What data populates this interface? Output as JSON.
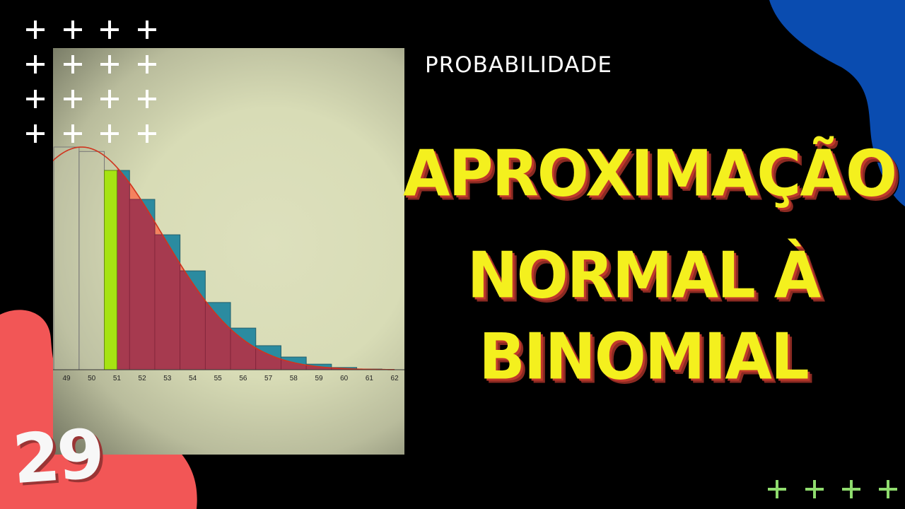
{
  "colors": {
    "background": "#000000",
    "blob_red": "#f25656",
    "blob_blue": "#0a4cb0",
    "title_yellow": "#f4f01e",
    "title_shadow": "#c0392b",
    "bar_red": "#a63a4f",
    "bar_teal": "#2b8ba0",
    "area_salmon": "#f4825f",
    "bar_green": "#a6e312",
    "curve": "#d0341e",
    "plus_white": "#ffffff",
    "plus_green": "#8fdc6e"
  },
  "header": {
    "category": "PROBABILIDADE"
  },
  "title": {
    "lines": [
      "APROXIMAÇÃO",
      "NORMAL À",
      "BINOMIAL"
    ]
  },
  "episode_number": "29",
  "decorations": {
    "plus_icon": "plus-icon",
    "white_plus_grid": "4x4",
    "green_plus_row": 4
  },
  "chart_data": {
    "type": "bar",
    "categories": [
      "49",
      "50",
      "51",
      "52",
      "53",
      "54",
      "55",
      "56",
      "57",
      "58",
      "59",
      "60",
      "61",
      "62"
    ],
    "x": [
      49,
      50,
      51,
      52,
      53,
      54,
      55,
      56,
      57,
      58,
      59,
      60,
      61,
      62
    ],
    "relative_heights": [
      1.0,
      0.98,
      0.895,
      0.765,
      0.606,
      0.444,
      0.302,
      0.187,
      0.108,
      0.057,
      0.025,
      0.01,
      0.003,
      0
    ],
    "highlight": {
      "green_from": 50.5,
      "green_to": 51,
      "red_from": 51
    },
    "normal_curve": {
      "peak_x": 49.6,
      "shown": true
    },
    "grid": false,
    "xlim": [
      48.5,
      62
    ]
  }
}
